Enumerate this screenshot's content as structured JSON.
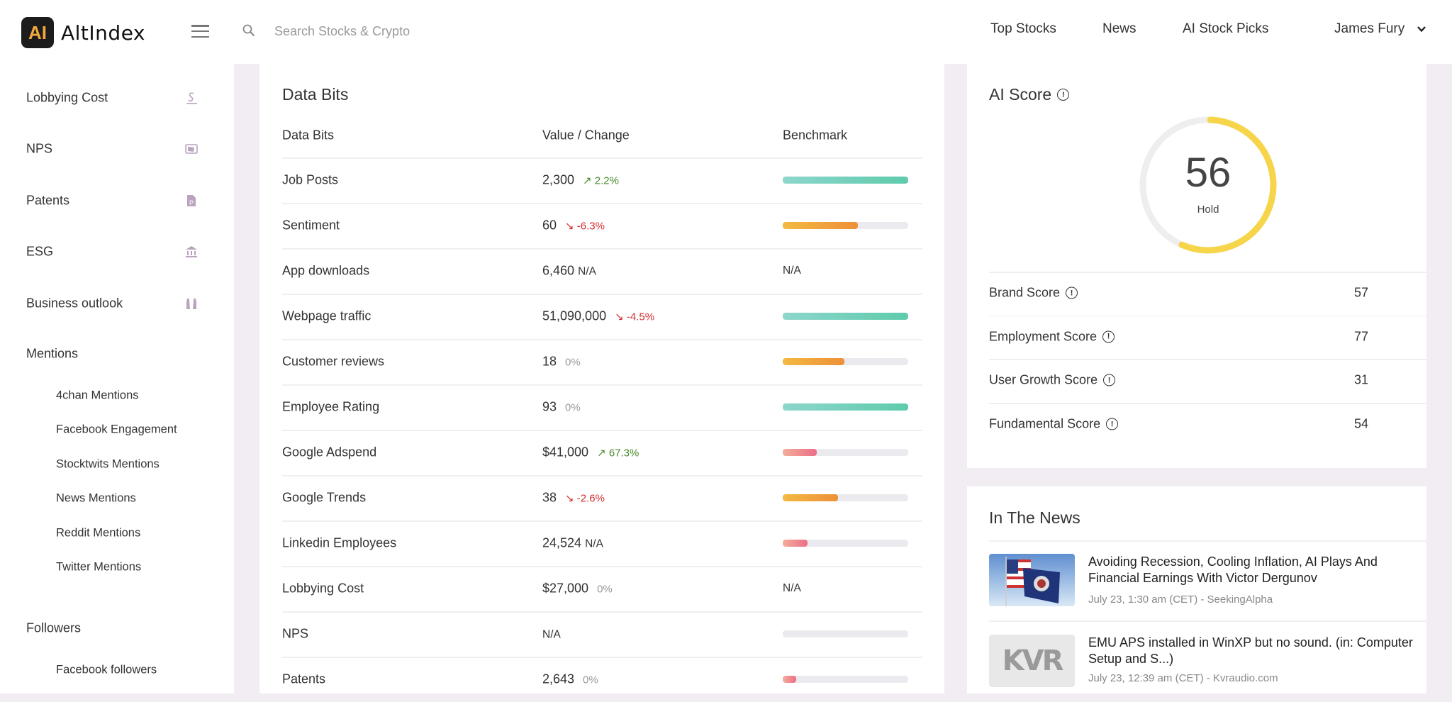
{
  "header": {
    "logo_mark": "AI",
    "logo_text": "AltIndex",
    "search_placeholder": "Search Stocks & Crypto",
    "nav": [
      "Top Stocks",
      "News",
      "AI Stock Picks"
    ],
    "user": "James Fury"
  },
  "sidebar": {
    "items": [
      {
        "label": "Lobbying Cost",
        "icon": "dollar-sign-icon"
      },
      {
        "label": "NPS",
        "icon": "nps-card-icon"
      },
      {
        "label": "Patents",
        "icon": "patent-file-icon"
      },
      {
        "label": "ESG",
        "icon": "bank-building-icon"
      },
      {
        "label": "Business outlook",
        "icon": "binoculars-icon"
      }
    ],
    "mentions_label": "Mentions",
    "mentions": [
      "4chan Mentions",
      "Facebook Engagement",
      "Stocktwits Mentions",
      "News Mentions",
      "Reddit Mentions",
      "Twitter Mentions"
    ],
    "followers_label": "Followers",
    "followers": [
      "Facebook followers"
    ]
  },
  "databits": {
    "title": "Data Bits",
    "columns": [
      "Data Bits",
      "Value / Change",
      "Benchmark"
    ],
    "rows": [
      {
        "name": "Job Posts",
        "value": "2,300",
        "change": "2.2%",
        "dir": "up",
        "benchmark": 1.0,
        "color": "teal"
      },
      {
        "name": "Sentiment",
        "value": "60",
        "change": "-6.3%",
        "dir": "down",
        "benchmark": 0.6,
        "color": "orange"
      },
      {
        "name": "App downloads",
        "value": "6,460",
        "change": "N/A",
        "dir": "na",
        "benchmark_text": "N/A"
      },
      {
        "name": "Webpage traffic",
        "value": "51,090,000",
        "change": "-4.5%",
        "dir": "down",
        "benchmark": 1.0,
        "color": "teal"
      },
      {
        "name": "Customer reviews",
        "value": "18",
        "change": "0%",
        "dir": "flat",
        "benchmark": 0.49,
        "color": "orange"
      },
      {
        "name": "Employee Rating",
        "value": "93",
        "change": "0%",
        "dir": "flat",
        "benchmark": 1.0,
        "color": "teal"
      },
      {
        "name": "Google Adspend",
        "value": "$41,000",
        "change": "67.3%",
        "dir": "up",
        "benchmark": 0.27,
        "color": "pink"
      },
      {
        "name": "Google Trends",
        "value": "38",
        "change": "-2.6%",
        "dir": "down",
        "benchmark": 0.44,
        "color": "orange"
      },
      {
        "name": "Linkedin Employees",
        "value": "24,524",
        "change": "N/A",
        "dir": "na",
        "benchmark": 0.2,
        "color": "pink"
      },
      {
        "name": "Lobbying Cost",
        "value": "$27,000",
        "change": "0%",
        "dir": "flat",
        "benchmark_text": "N/A"
      },
      {
        "name": "NPS",
        "value": "N/A",
        "change": "",
        "dir": "none",
        "benchmark": 0,
        "color": "pink"
      },
      {
        "name": "Patents",
        "value": "2,643",
        "change": "0%",
        "dir": "flat",
        "benchmark": 0.11,
        "color": "pink"
      }
    ]
  },
  "colors": {
    "teal": "#5ecbab",
    "teal_start": "#8dd6cc",
    "orange": "#ee9038",
    "orange_start": "#f3b942",
    "pink": "#ec6d88",
    "pink_start": "#f3ae9a",
    "gauge": "#f7d54a",
    "gauge_track": "#eeeeee"
  },
  "ai_score": {
    "title": "AI Score",
    "value": "56",
    "score_percent": 56,
    "rating": "Hold",
    "scores": [
      {
        "label": "Brand Score",
        "value": "57"
      },
      {
        "label": "Employment Score",
        "value": "77"
      },
      {
        "label": "User Growth Score",
        "value": "31"
      },
      {
        "label": "Fundamental Score",
        "value": "54"
      }
    ]
  },
  "news": {
    "title": "In The News",
    "items": [
      {
        "title": "Avoiding Recession, Cooling Inflation, AI Plays And Financial Earnings With Victor Dergunov",
        "meta": "July 23, 1:30 am (CET) - SeekingAlpha",
        "thumb": "flags"
      },
      {
        "title": "EMU APS installed in WinXP but no sound. (in: Computer Setup and S...)",
        "meta": "July 23, 12:39 am (CET) - Kvraudio.com",
        "thumb": "KVR"
      }
    ]
  }
}
